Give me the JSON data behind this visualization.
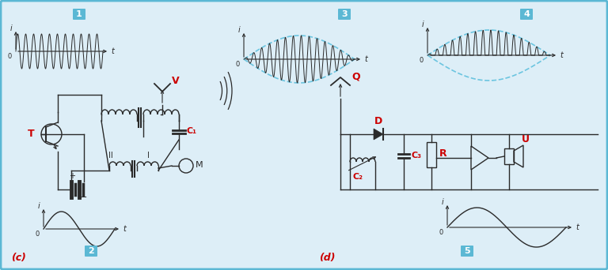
{
  "bg_color": "#ddeef7",
  "border_color": "#5bb8d4",
  "label_color": "#cc0000",
  "box_label_bg": "#5bb8d4",
  "box_label_color": "white",
  "signal_color": "#2a2a2a",
  "dashed_color": "#6cc5e0",
  "circuit_color": "#2a2a2a",
  "T_label": "T",
  "C1_label": "C₁",
  "C2_label": "C₂",
  "C3_label": "C₃",
  "R_label": "R",
  "D_label": "D",
  "Q_label": "Q",
  "M_label": "M",
  "U_label": "U",
  "I_label": "I",
  "II_label": "II",
  "V_label": "V",
  "c_label": "(c)",
  "d_label": "(d)"
}
